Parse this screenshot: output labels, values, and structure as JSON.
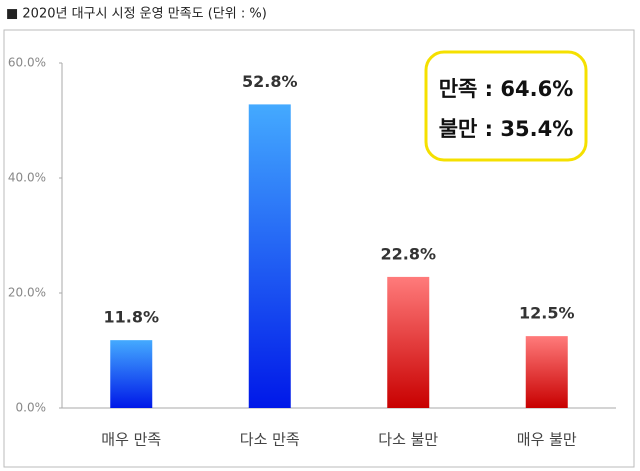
{
  "chart_data": {
    "type": "bar",
    "title": "■ 2020년 대구시 시정 운영 만족도 (단위 : %)",
    "categories": [
      "매우 만족",
      "다소 만족",
      "다소 불만",
      "매우 불만"
    ],
    "values": [
      11.8,
      52.8,
      22.8,
      12.5
    ],
    "value_labels": [
      "11.8%",
      "52.8%",
      "22.8%",
      "12.5%"
    ],
    "colors": [
      [
        "#44aaff",
        "#0018e8"
      ],
      [
        "#44aaff",
        "#0018e8"
      ],
      [
        "#ff7b7b",
        "#c80000"
      ],
      [
        "#ff7b7b",
        "#c80000"
      ]
    ],
    "ylim": [
      0,
      60
    ],
    "yticks": [
      {
        "value": 0,
        "label": "0.0%"
      },
      {
        "value": 20,
        "label": "20.0%"
      },
      {
        "value": 40,
        "label": "40.0%"
      },
      {
        "value": 60,
        "label": "60.0%"
      }
    ],
    "annotations": [
      "만족 : 64.6%",
      "불만 : 35.4%"
    ]
  }
}
